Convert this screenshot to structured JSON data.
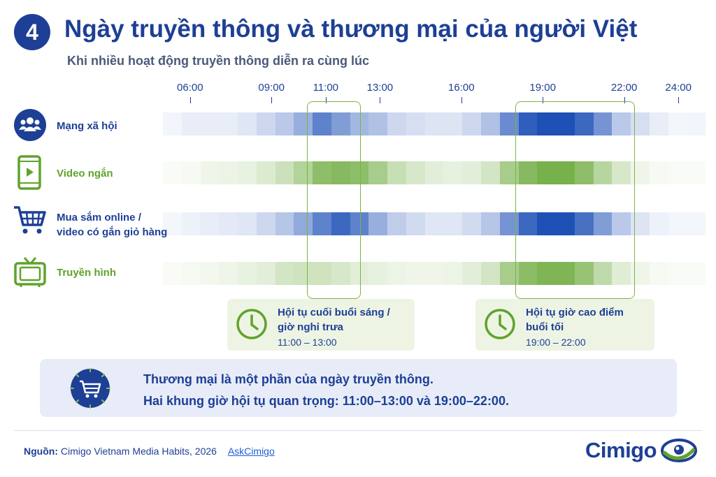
{
  "header": {
    "number": "4",
    "title": "Ngày truyền thông và thương mại của người Việt",
    "subtitle": "Khi nhiều hoạt động truyền thông diễn ra cùng lúc"
  },
  "chart_data": {
    "type": "heatmap",
    "x_tick_labels": [
      "06:00",
      "09:00",
      "11:00",
      "13:00",
      "16:00",
      "19:00",
      "22:00",
      "24:00"
    ],
    "x_tick_hours": [
      6,
      9,
      11,
      13,
      16,
      19,
      22,
      24
    ],
    "x_range_hours": [
      5,
      25
    ],
    "intensity_scale": [
      0,
      1
    ],
    "series": [
      {
        "name": "Mạng xã hội",
        "color": "#1a4db5",
        "values": [
          0.06,
          0.1,
          0.1,
          0.1,
          0.14,
          0.22,
          0.3,
          0.45,
          0.7,
          0.55,
          0.4,
          0.35,
          0.22,
          0.18,
          0.15,
          0.15,
          0.22,
          0.35,
          0.65,
          0.9,
          0.98,
          0.98,
          0.85,
          0.6,
          0.3,
          0.18,
          0.1,
          0.05,
          0.06
        ]
      },
      {
        "name": "Video ngắn",
        "color": "#5fa32b",
        "values": [
          0.04,
          0.06,
          0.1,
          0.12,
          0.14,
          0.22,
          0.32,
          0.48,
          0.7,
          0.75,
          0.7,
          0.55,
          0.35,
          0.25,
          0.18,
          0.15,
          0.18,
          0.28,
          0.55,
          0.75,
          0.85,
          0.85,
          0.7,
          0.45,
          0.25,
          0.1,
          0.06,
          0.04,
          0.04
        ]
      },
      {
        "name": "Mua sắm online / video có gắn giỏ hàng",
        "color": "#1a4db5",
        "values": [
          0.05,
          0.08,
          0.1,
          0.12,
          0.14,
          0.22,
          0.32,
          0.48,
          0.7,
          0.85,
          0.7,
          0.45,
          0.28,
          0.2,
          0.14,
          0.14,
          0.2,
          0.32,
          0.6,
          0.85,
          0.98,
          0.98,
          0.8,
          0.55,
          0.3,
          0.15,
          0.08,
          0.05,
          0.05
        ]
      },
      {
        "name": "Truyền hình",
        "color": "#5fa32b",
        "values": [
          0.04,
          0.06,
          0.08,
          0.1,
          0.14,
          0.18,
          0.28,
          0.3,
          0.3,
          0.25,
          0.18,
          0.15,
          0.12,
          0.1,
          0.1,
          0.12,
          0.18,
          0.28,
          0.55,
          0.72,
          0.8,
          0.8,
          0.65,
          0.4,
          0.2,
          0.1,
          0.06,
          0.04,
          0.04
        ]
      }
    ],
    "highlight_windows": [
      {
        "start_hour": 10.3,
        "end_hour": 12.3
      },
      {
        "start_hour": 18.0,
        "end_hour": 22.4
      }
    ]
  },
  "rows": [
    {
      "label_lines": [
        "Mạng xã hội"
      ],
      "icon": "people-icon",
      "color": "#1d3f95"
    },
    {
      "label_lines": [
        "Video ngắn"
      ],
      "icon": "phone-video-icon",
      "color": "#5fa32b"
    },
    {
      "label_lines": [
        "Mua sắm online /",
        "video có gắn giỏ hàng"
      ],
      "icon": "shopping-cart-icon",
      "color": "#1d3f95"
    },
    {
      "label_lines": [
        "Truyền hình"
      ],
      "icon": "tv-icon",
      "color": "#5fa32b"
    }
  ],
  "callouts": [
    {
      "title_lines": [
        "Hội tụ cuối buổi sáng /",
        "giờ nghỉ trưa"
      ],
      "time": "11:00 – 13:00",
      "icon": "clock-icon"
    },
    {
      "title_lines": [
        "Hội tụ giờ cao điểm",
        "buổi tối"
      ],
      "time": "19:00 – 22:00",
      "icon": "clock-icon"
    }
  ],
  "summary": {
    "line1": "Thương mại là một phần của ngày truyền thông.",
    "line2": "Hai khung giờ hội tụ quan trọng: 11:00–13:00 và 19:00–22:00.",
    "icon": "shopping-cart-icon"
  },
  "footer": {
    "source_label": "Nguồn:",
    "source_text": "Cimigo Vietnam Media Habits, 2026",
    "link_text": "AskCimigo",
    "logo_text": "Cimigo"
  },
  "colors": {
    "navy": "#1d3f95",
    "green": "#5fa32b",
    "blue": "#1a4db5"
  }
}
